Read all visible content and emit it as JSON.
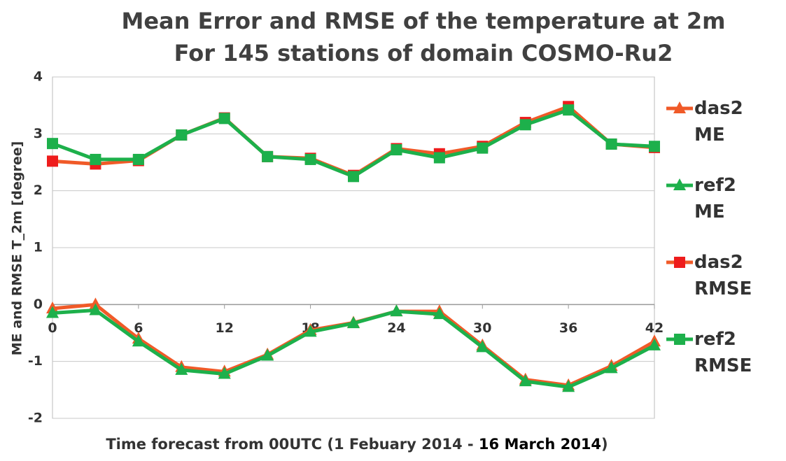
{
  "chart_data": {
    "type": "line",
    "title": "Mean Error and RMSE of the temperature at 2m",
    "subtitle": "For 145 stations of domain COSMO-Ru2",
    "ylabel": "ME and RMSE  T_2m  [degree]",
    "xlabel": [
      "Time forecast from 00UTC (1 Febuary 2014 -",
      "16 March 2014",
      ")"
    ],
    "x": [
      0,
      3,
      6,
      9,
      12,
      15,
      18,
      21,
      24,
      27,
      30,
      33,
      36,
      39,
      42
    ],
    "xlim": [
      0,
      42
    ],
    "xticks": [
      0,
      6,
      12,
      18,
      24,
      30,
      36,
      42
    ],
    "ylim": [
      -2,
      4
    ],
    "yticks": [
      -2,
      -1,
      0,
      1,
      2,
      3,
      4
    ],
    "grid": true,
    "series": [
      {
        "name": "das2 ME",
        "color": "#f05a28",
        "marker": "triangle",
        "marker_color": "#f05a28",
        "values": [
          -0.07,
          0.0,
          -0.6,
          -1.1,
          -1.18,
          -0.88,
          -0.45,
          -0.32,
          -0.12,
          -0.12,
          -0.72,
          -1.32,
          -1.42,
          -1.08,
          -0.65
        ]
      },
      {
        "name": "ref2 ME",
        "color": "#1db04b",
        "marker": "triangle",
        "marker_color": "#1db04b",
        "values": [
          -0.15,
          -0.1,
          -0.65,
          -1.15,
          -1.22,
          -0.9,
          -0.48,
          -0.33,
          -0.12,
          -0.17,
          -0.75,
          -1.35,
          -1.45,
          -1.12,
          -0.72
        ]
      },
      {
        "name": "das2 RMSE",
        "color": "#f05a28",
        "marker": "square",
        "marker_color": "#ee1c1c",
        "values": [
          2.52,
          2.47,
          2.53,
          2.98,
          3.28,
          2.6,
          2.57,
          2.27,
          2.74,
          2.65,
          2.78,
          3.2,
          3.48,
          2.82,
          2.76
        ]
      },
      {
        "name": "ref2 RMSE",
        "color": "#1db04b",
        "marker": "square",
        "marker_color": "#1db04b",
        "values": [
          2.83,
          2.55,
          2.55,
          2.98,
          3.27,
          2.6,
          2.55,
          2.25,
          2.72,
          2.58,
          2.75,
          3.16,
          3.42,
          2.82,
          2.78
        ]
      }
    ]
  }
}
